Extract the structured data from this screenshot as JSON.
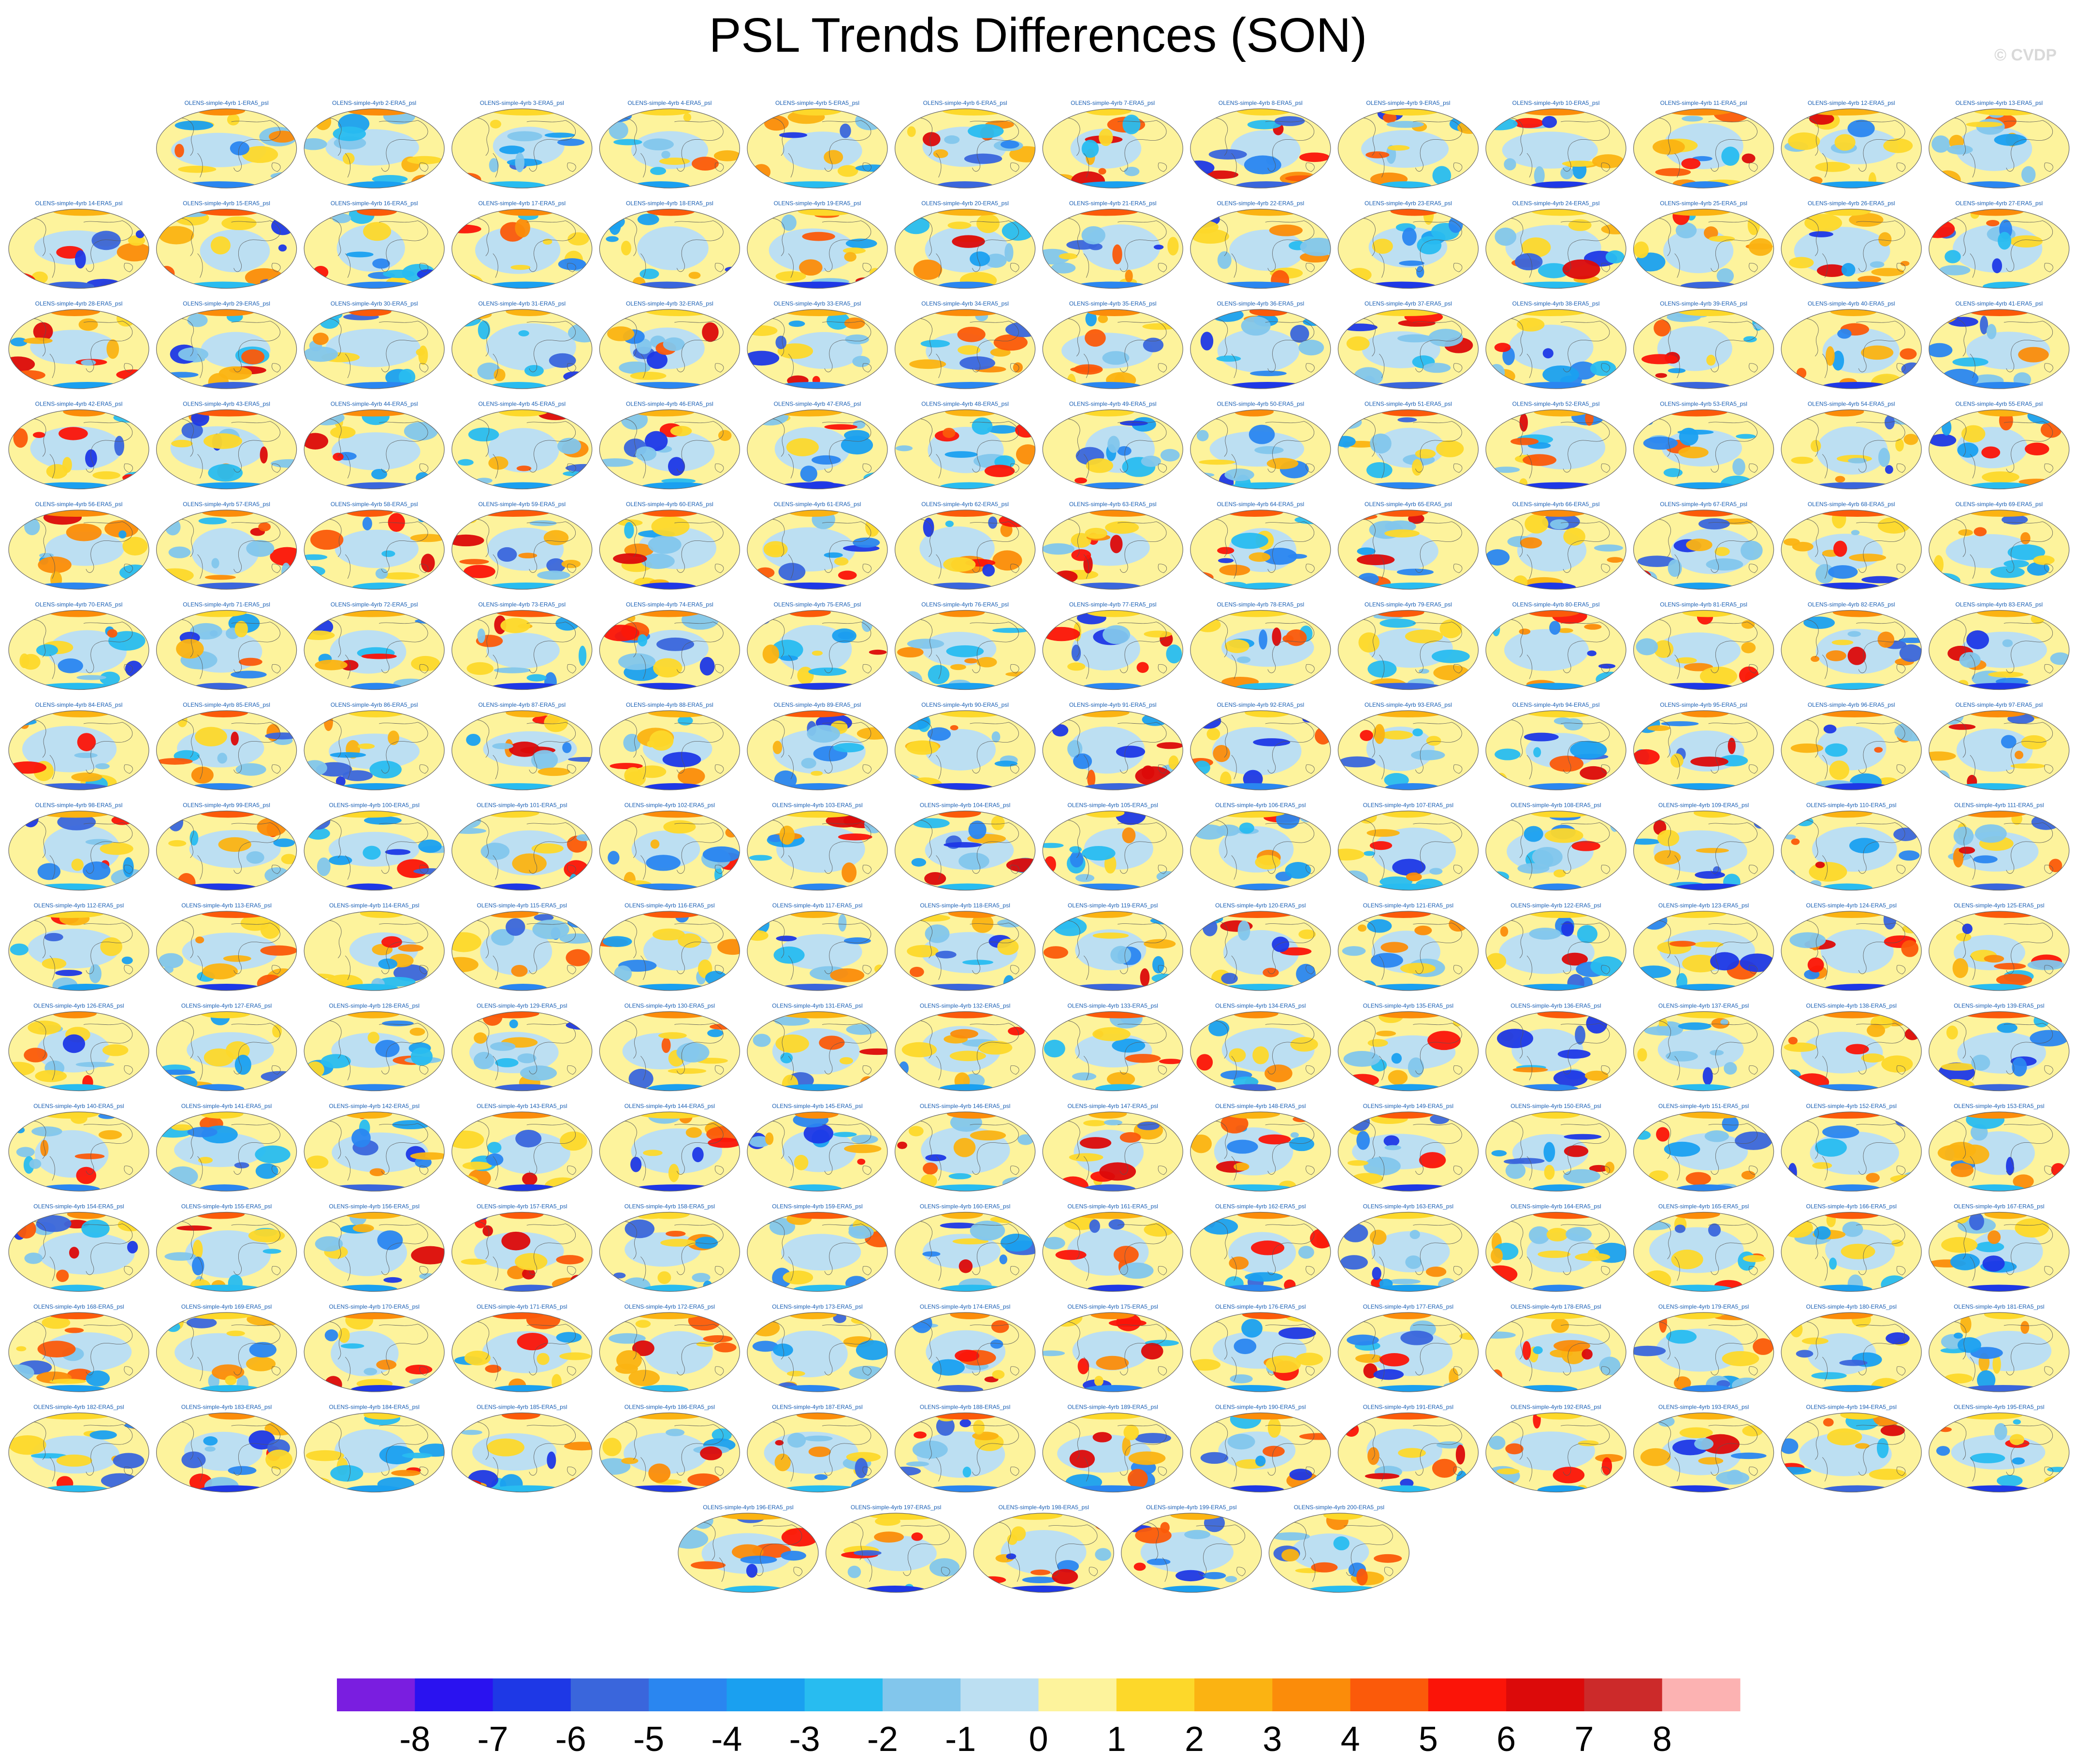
{
  "title": "PSL Trends Differences (SON)",
  "watermark": "© CVDP",
  "panel_title_template": "OLENS-simple-4yrb {n}-ERA5_psl",
  "panel_count": 200,
  "rows": [
    13,
    14,
    14,
    14,
    14,
    14,
    14,
    14,
    14,
    14,
    14,
    14,
    14,
    14,
    5
  ],
  "colorbar": {
    "colors": [
      "#7a1ee0",
      "#2a12f0",
      "#1e38e6",
      "#3a66dc",
      "#2a86f0",
      "#1aa0f0",
      "#28bcf0",
      "#82c6ec",
      "#bcdff2",
      "#fdf39c",
      "#fdd82a",
      "#fbb312",
      "#fb8c0a",
      "#fb5a0a",
      "#fb1408",
      "#dc0a0a",
      "#cc2a2a",
      "#fcb2b2"
    ],
    "labels": [
      "-8",
      "-7",
      "-6",
      "-5",
      "-4",
      "-3",
      "-2",
      "-1",
      "0",
      "1",
      "2",
      "3",
      "4",
      "5",
      "6",
      "7",
      "8"
    ]
  },
  "chart_data": {
    "type": "heatmap",
    "title": "PSL Trends Differences (SON)",
    "panels": "200 global map panels: OLENS-simple-4yrb 1..200 minus ERA5 psl",
    "color_scale_levels": [
      -8,
      -7,
      -6,
      -5,
      -4,
      -3,
      -2,
      -1,
      0,
      1,
      2,
      3,
      4,
      5,
      6,
      7,
      8
    ],
    "legend_position": "bottom"
  }
}
